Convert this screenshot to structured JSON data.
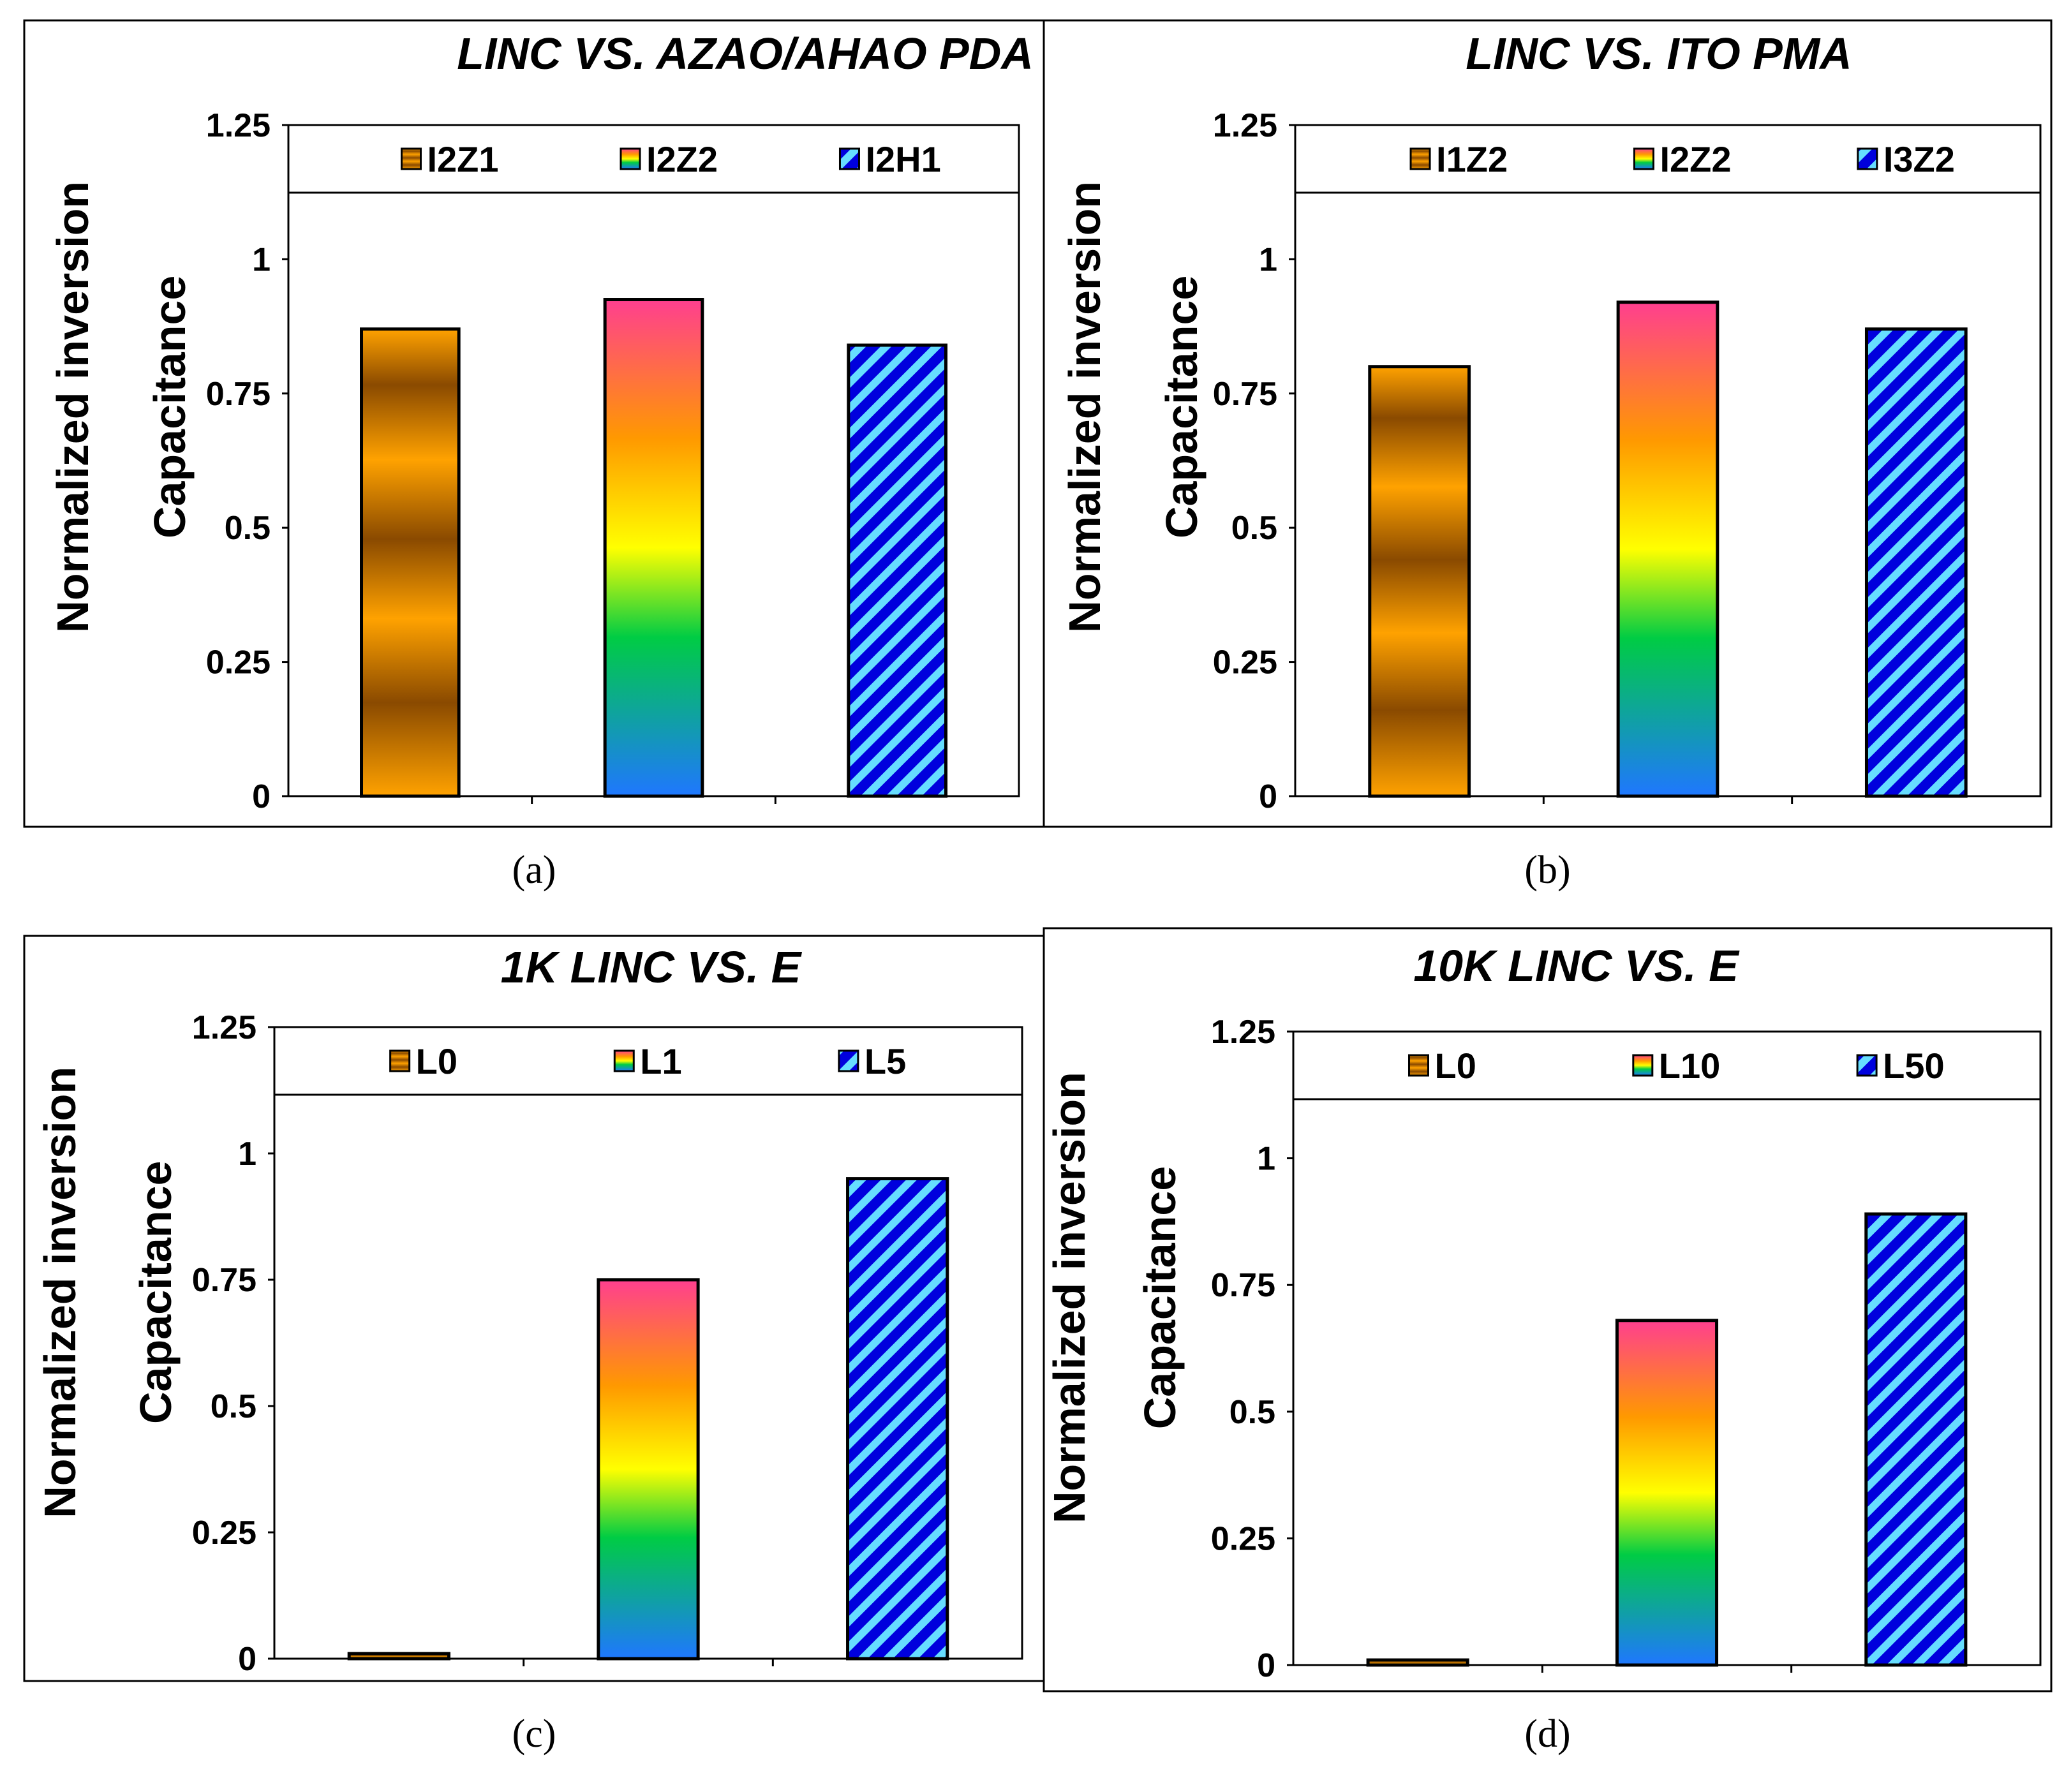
{
  "colors": {
    "brown_dark": "#8a4a00",
    "brown_light": "#ffa200",
    "rainbow_pink": "#ff3f8f",
    "rainbow_orange": "#ff9900",
    "rainbow_yellow": "#ffff00",
    "rainbow_green": "#00cc44",
    "rainbow_blue": "#1f77ff",
    "stripe_blue": "#0000dd",
    "stripe_light": "#66ddff"
  },
  "chart_data": [
    {
      "type": "bar",
      "caption": "(a)",
      "title": "LINC VS. AZAO/AHAO PDA",
      "ylabel": [
        "Normalized inversion",
        "Capacitance"
      ],
      "xlabel": "",
      "ylim": [
        0,
        1.25
      ],
      "yticks": [
        "0",
        "0.25",
        "0.5",
        "0.75",
        "1",
        "1.25"
      ],
      "legend_position": "top",
      "categories": [
        "I2Z1",
        "I2Z2",
        "I2H1"
      ],
      "values": [
        0.87,
        0.925,
        0.84
      ],
      "fills": [
        "brown",
        "rainbow",
        "stripes"
      ]
    },
    {
      "type": "bar",
      "caption": "(b)",
      "title": "LINC VS. ITO PMA",
      "ylabel": [
        "Normalized inversion",
        "Capacitance"
      ],
      "xlabel": "",
      "ylim": [
        0,
        1.25
      ],
      "yticks": [
        "0",
        "0.25",
        "0.5",
        "0.75",
        "1",
        "1.25"
      ],
      "legend_position": "top",
      "categories": [
        "I1Z2",
        "I2Z2",
        "I3Z2"
      ],
      "values": [
        0.8,
        0.92,
        0.87
      ],
      "fills": [
        "brown",
        "rainbow",
        "stripes"
      ]
    },
    {
      "type": "bar",
      "caption": "(c)",
      "title": "1K  LINC    VS.  E",
      "ylabel": [
        "Normalized inversion",
        "Capacitance"
      ],
      "xlabel": "",
      "ylim": [
        0,
        1.25
      ],
      "yticks": [
        "0",
        "0.25",
        "0.5",
        "0.75",
        "1",
        "1.25"
      ],
      "legend_position": "top",
      "categories": [
        "L0",
        "L1",
        "L5"
      ],
      "values": [
        0.01,
        0.75,
        0.95
      ],
      "fills": [
        "brown",
        "rainbow",
        "stripes"
      ]
    },
    {
      "type": "bar",
      "caption": "(d)",
      "title": "10K  LINC VS. E",
      "ylabel": [
        "Normalized inversion",
        "Capacitance"
      ],
      "xlabel": "",
      "ylim": [
        0,
        1.25
      ],
      "yticks": [
        "0",
        "0.25",
        "0.5",
        "0.75",
        "1",
        "1.25"
      ],
      "legend_position": "top",
      "categories": [
        "L0",
        "L10",
        "L50"
      ],
      "values": [
        0.01,
        0.68,
        0.89
      ],
      "fills": [
        "brown",
        "rainbow",
        "stripes"
      ]
    }
  ]
}
